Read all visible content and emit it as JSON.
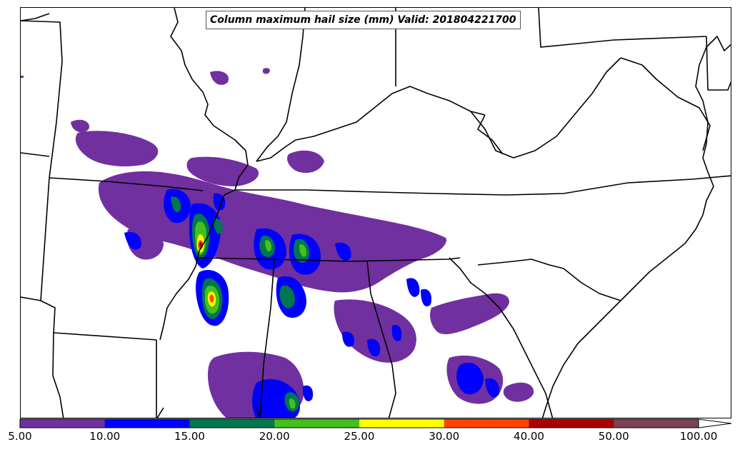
{
  "title": "Column maximum hail size (mm) Valid: 201804221700",
  "colorbar": {
    "labels": [
      "5.00",
      "10.00",
      "15.00",
      "20.00",
      "25.00",
      "30.00",
      "40.00",
      "50.00",
      "100.00"
    ],
    "colors": [
      "#7030a0",
      "#0000ff",
      "#00774e",
      "#44c01a",
      "#ffff00",
      "#ff4400",
      "#aa0000",
      "#7a4455"
    ],
    "extend": "max"
  },
  "legend_icon": "colorbar-arrow-icon"
}
